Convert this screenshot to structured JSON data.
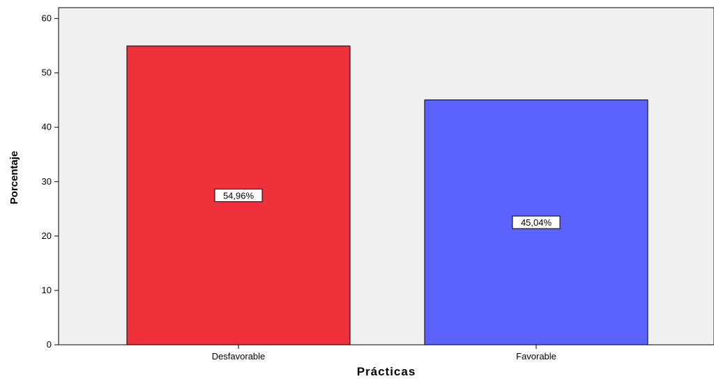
{
  "chart_data": {
    "type": "bar",
    "title": "",
    "xlabel": "Prácticas",
    "ylabel": "Porcentaje",
    "categories": [
      "Desfavorable",
      "Favorable"
    ],
    "values": [
      54.96,
      45.04
    ],
    "data_labels": [
      "54,96%",
      "45,04%"
    ],
    "bar_colors": [
      "#ee313a",
      "#5b62fe"
    ],
    "background_color": "#f0f0f0",
    "ylim": [
      0,
      62
    ],
    "yticks": [
      0,
      10,
      20,
      30,
      40,
      50,
      60
    ],
    "ytick_labels": [
      "0",
      "10",
      "20",
      "30",
      "40",
      "50",
      "60"
    ],
    "grid": false,
    "legend": "none"
  }
}
